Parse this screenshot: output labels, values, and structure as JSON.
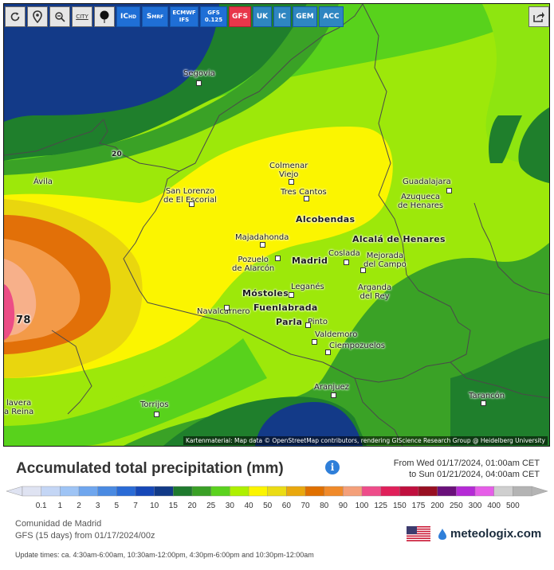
{
  "toolbar": {
    "buttons": [
      {
        "name": "refresh-icon",
        "label": ""
      },
      {
        "name": "location-icon",
        "label": ""
      },
      {
        "name": "zoom-out-icon",
        "label": ""
      },
      {
        "name": "city-toggle-icon",
        "label": "CITY"
      },
      {
        "name": "marker-pin-icon",
        "label": ""
      }
    ],
    "models": [
      {
        "label": "ICHD",
        "sub_main": "IC",
        "sub": "HD"
      },
      {
        "label": "SMRF",
        "sub_main": "S",
        "sub": "MRF"
      },
      {
        "label": "ECMWF IFS",
        "sub_main": "ECMWF",
        "sub": "IFS"
      },
      {
        "label": "GFS 0.125",
        "sub_main": "GFS",
        "sub": "0.125"
      },
      {
        "label": "GFS"
      },
      {
        "label": "UK"
      },
      {
        "label": "IC"
      },
      {
        "label": "GEM"
      },
      {
        "label": "ACC"
      }
    ],
    "active_model": "GFS"
  },
  "map": {
    "cities": [
      {
        "name": "Segovia"
      },
      {
        "name": "Ávila"
      },
      {
        "name": "San Lorenzo\nde El Escorial"
      },
      {
        "name": "Colmenar\nViejo"
      },
      {
        "name": "Tres Cantos"
      },
      {
        "name": "Guadalajara"
      },
      {
        "name": "Azuqueca\nde Henares"
      },
      {
        "name": "Alcobendas"
      },
      {
        "name": "Majadahonda"
      },
      {
        "name": "Alcalá de Henares"
      },
      {
        "name": "Pozuelo\nde Alarcón"
      },
      {
        "name": "Madrid"
      },
      {
        "name": "Coslada"
      },
      {
        "name": "Mejorada\ndel Campo"
      },
      {
        "name": "Leganés"
      },
      {
        "name": "Móstoles"
      },
      {
        "name": "Arganda\ndel Rey"
      },
      {
        "name": "Navalcarnero"
      },
      {
        "name": "Fuenlabrada"
      },
      {
        "name": "Parla"
      },
      {
        "name": "Pinto"
      },
      {
        "name": "Valdemoro"
      },
      {
        "name": "Ciempozuelos"
      },
      {
        "name": "Aranjuez"
      },
      {
        "name": "Tarancón"
      },
      {
        "name": "Torrijos"
      },
      {
        "name": "lavera\na Reina"
      }
    ],
    "value_labels": [
      "20",
      "78"
    ],
    "attribution": "Kartenmaterial: Map data © OpenStreetMap contributors, rendering GIScience Research Group @ Heidelberg University"
  },
  "title": "Accumulated total precipitation (mm)",
  "time_range": {
    "from": "From Wed 01/17/2024, 01:00am CET",
    "to": "to Sun 01/21/2024, 04:00am CET"
  },
  "legend": {
    "ticks": [
      "0.1",
      "1",
      "2",
      "3",
      "5",
      "7",
      "10",
      "15",
      "20",
      "25",
      "30",
      "40",
      "50",
      "60",
      "70",
      "80",
      "90",
      "100",
      "125",
      "150",
      "175",
      "200",
      "250",
      "300",
      "400",
      "500"
    ],
    "colors": [
      "#dfe3f2",
      "#c4d6f5",
      "#9ec4f5",
      "#6fa6ee",
      "#4a8ae2",
      "#2a6bd6",
      "#1648b8",
      "#123a87",
      "#1f7a2e",
      "#3aa026",
      "#5bd21e",
      "#aef000",
      "#fbf500",
      "#ebdc14",
      "#e9a80e",
      "#e07000",
      "#f08a2a",
      "#f4a07a",
      "#ee4d8a",
      "#e0205a",
      "#c0103e",
      "#980f22",
      "#6a107a",
      "#b52ad6",
      "#e65ee8",
      "#cfcfcf",
      "#b4b4b4"
    ]
  },
  "meta": {
    "region": "Comunidad de Madrid",
    "run": "GFS (15 days) from 01/17/2024/00z",
    "updates": "Update times: ca. 4:30am-6:00am, 10:30am-12:00pm, 4:30pm-6:00pm and 10:30pm-12:00am"
  },
  "brand": "meteologix.com"
}
